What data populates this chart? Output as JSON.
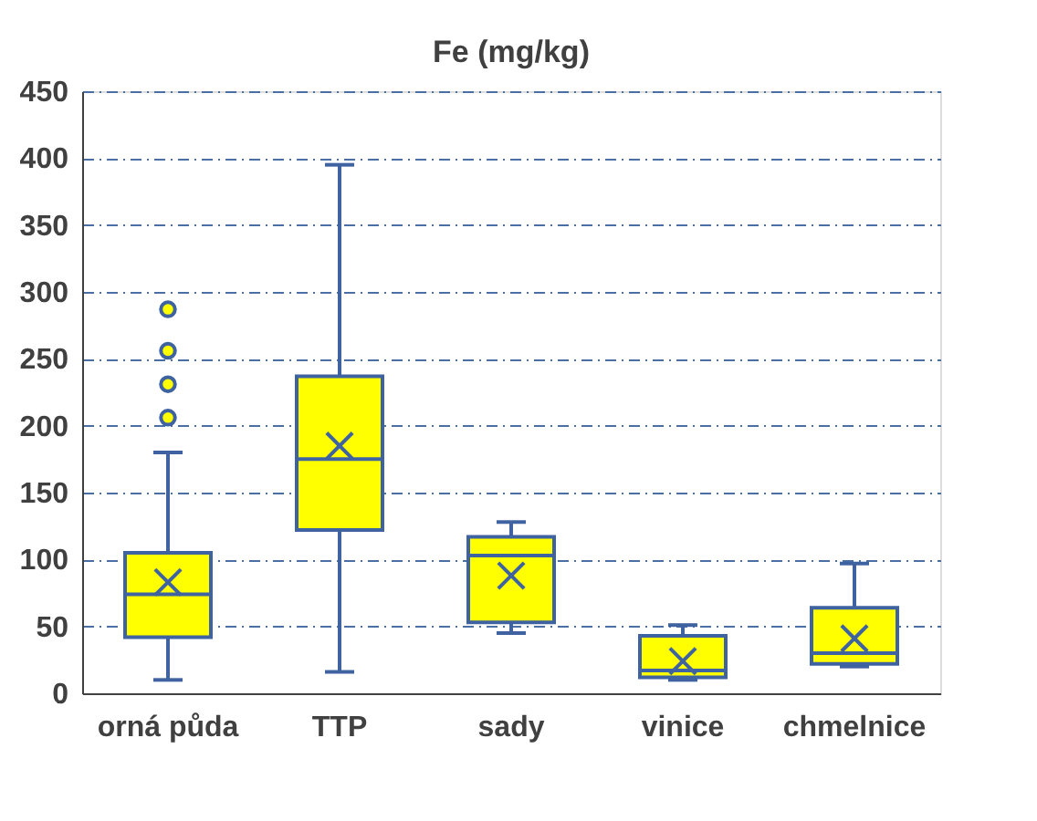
{
  "chart_data": {
    "type": "box",
    "title": "Fe (mg/kg)",
    "categories": [
      "orná půda",
      "TTP",
      "sady",
      "vinice",
      "chmelnice"
    ],
    "boxes": [
      {
        "low": 10,
        "q1": 42,
        "median": 74,
        "q3": 105,
        "high": 180,
        "mean": 83,
        "outliers": [
          206,
          231,
          256,
          287
        ]
      },
      {
        "low": 16,
        "q1": 122,
        "median": 175,
        "q3": 237,
        "high": 395,
        "mean": 185
      },
      {
        "low": 45,
        "q1": 53,
        "median": 103,
        "q3": 117,
        "high": 128,
        "mean": 88
      },
      {
        "low": 10,
        "q1": 12,
        "median": 17,
        "q3": 43,
        "high": 51,
        "mean": 24
      },
      {
        "low": 20,
        "q1": 22,
        "median": 30,
        "q3": 64,
        "high": 97,
        "mean": 41
      }
    ],
    "color": "#ffff00",
    "ylim": [
      0,
      450
    ],
    "yticks": [
      0,
      50,
      100,
      150,
      200,
      250,
      300,
      350,
      400,
      450
    ],
    "grid": "y"
  }
}
